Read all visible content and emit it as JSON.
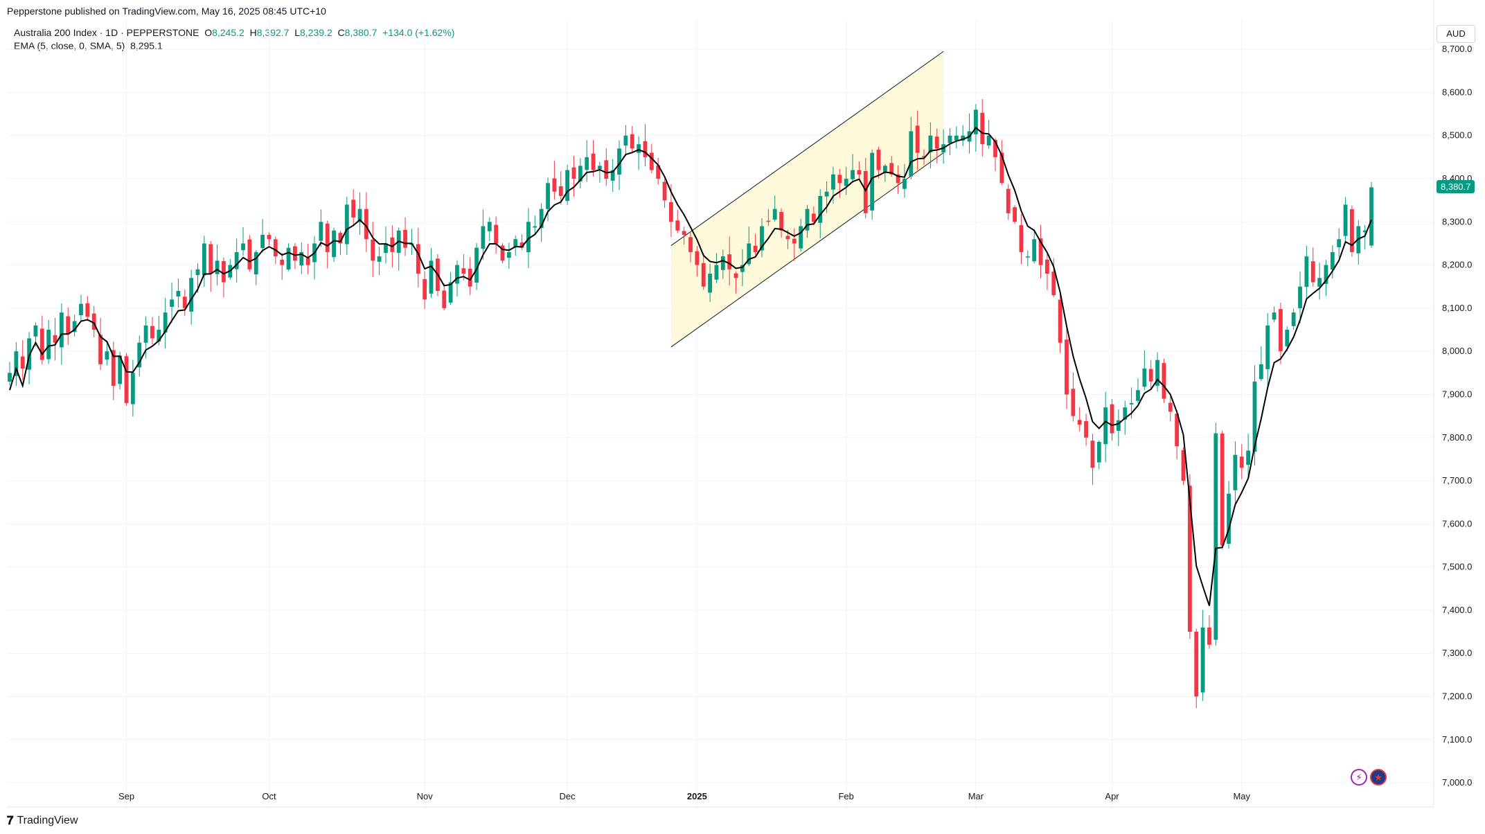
{
  "header": {
    "published": "Pepperstone published on TradingView.com, May 16, 2025 08:45 UTC+10"
  },
  "legend": {
    "symbol": "Australia 200 Index · 1D · PEPPERSTONE",
    "o_label": "O",
    "o_value": "8,245.2",
    "h_label": "H",
    "h_value": "8,392.7",
    "l_label": "L",
    "l_value": "8,239.2",
    "c_label": "C",
    "c_value": "8,380.7",
    "change": "+134.0 (+1.62%)",
    "ema_label": "EMA (5, close, 0, SMA, 5)",
    "ema_value": "8,295.1"
  },
  "currency": "AUD",
  "last_price_label": "8,380.7",
  "footer": {
    "logo_text": "TradingView"
  },
  "icons": [
    "lightning-icon",
    "australia-flag-icon"
  ],
  "colors": {
    "up": "#089981",
    "down": "#f23645",
    "ema": "#000000",
    "channel_fill": "#fff9db",
    "channel_line": "#131722"
  },
  "chart_data": {
    "type": "candlestick",
    "ylim": [
      7000,
      8750
    ],
    "y_ticks": [
      "7,000.0",
      "7,100.0",
      "7,200.0",
      "7,300.0",
      "7,400.0",
      "7,500.0",
      "7,600.0",
      "7,700.0",
      "7,800.0",
      "7,900.0",
      "8,000.0",
      "8,100.0",
      "8,200.0",
      "8,300.0",
      "8,400.0",
      "8,500.0",
      "8,600.0",
      "8,700.0"
    ],
    "y_tick_values": [
      7000,
      7100,
      7200,
      7300,
      7400,
      7500,
      7600,
      7700,
      7800,
      7900,
      8000,
      8100,
      8200,
      8300,
      8400,
      8500,
      8600,
      8700
    ],
    "x_ticks": [
      {
        "label": "Sep",
        "index": 18
      },
      {
        "label": "Oct",
        "index": 40
      },
      {
        "label": "Nov",
        "index": 64
      },
      {
        "label": "Dec",
        "index": 86
      },
      {
        "label": "2025",
        "index": 106,
        "bold": true
      },
      {
        "label": "Feb",
        "index": 129
      },
      {
        "label": "Mar",
        "index": 149
      },
      {
        "label": "Apr",
        "index": 170
      },
      {
        "label": "May",
        "index": 190
      }
    ],
    "series": [
      {
        "name": "Australia 200 Index",
        "kind": "ohlc",
        "close": [
          7950,
          8000,
          7960,
          8030,
          8060,
          7980,
          8050,
          8020,
          8090,
          8040,
          8070,
          8110,
          8080,
          8050,
          7970,
          8000,
          7920,
          7990,
          7880,
          7950,
          8020,
          8060,
          8030,
          8050,
          8090,
          8120,
          8140,
          8100,
          8170,
          8190,
          8250,
          8180,
          8210,
          8160,
          8200,
          8230,
          8250,
          8190,
          8230,
          8270,
          8260,
          8220,
          8200,
          8240,
          8210,
          8230,
          8200,
          8250,
          8300,
          8230,
          8280,
          8250,
          8340,
          8310,
          8330,
          8260,
          8210,
          8220,
          8250,
          8230,
          8280,
          8240,
          8250,
          8180,
          8120,
          8210,
          8140,
          8100,
          8160,
          8200,
          8180,
          8150,
          8240,
          8290,
          8300,
          8250,
          8210,
          8230,
          8260,
          8240,
          8300,
          8290,
          8330,
          8390,
          8370,
          8360,
          8420,
          8400,
          8430,
          8450,
          8420,
          8430,
          8400,
          8420,
          8470,
          8500,
          8470,
          8480,
          8450,
          8420,
          8400,
          8350,
          8300,
          8280,
          8270,
          8230,
          8200,
          8150,
          8180,
          8200,
          8220,
          8190,
          8170,
          8200,
          8250,
          8230,
          8290,
          8300,
          8330,
          8280,
          8260,
          8250,
          8290,
          8330,
          8300,
          8360,
          8370,
          8410,
          8390,
          8400,
          8420,
          8410,
          8320,
          8460,
          8420,
          8430,
          8410,
          8390,
          8400,
          8510,
          8460,
          8450,
          8500,
          8470,
          8480,
          8500,
          8500,
          8500,
          8510,
          8560,
          8480,
          8500,
          8450,
          8390,
          8320,
          8300,
          8230,
          8220,
          8260,
          8200,
          8180,
          8130,
          8020,
          7900,
          7850,
          7830,
          7800,
          7730,
          7790,
          7870,
          7810,
          7840,
          7870,
          7880,
          7910,
          7960,
          7930,
          7980,
          7890,
          7860,
          7780,
          7700,
          7350,
          7200,
          7360,
          7320,
          7810,
          7550,
          7670,
          7760,
          7730,
          7770,
          7930,
          7970,
          8060,
          8090,
          8000,
          8050,
          8090,
          8150,
          8220,
          8160,
          8170,
          8200,
          8230,
          8260,
          8340,
          8230,
          8290,
          8280,
          8380
        ],
        "volatility": 35
      }
    ],
    "ema": {
      "name": "EMA (5, close, 0, SMA, 5)",
      "last": 8295.1
    },
    "channel": {
      "from_index": 102,
      "to_index": 144,
      "lower_start": 8010,
      "lower_end": 8460,
      "upper_start": 8245,
      "upper_end": 8695
    }
  }
}
